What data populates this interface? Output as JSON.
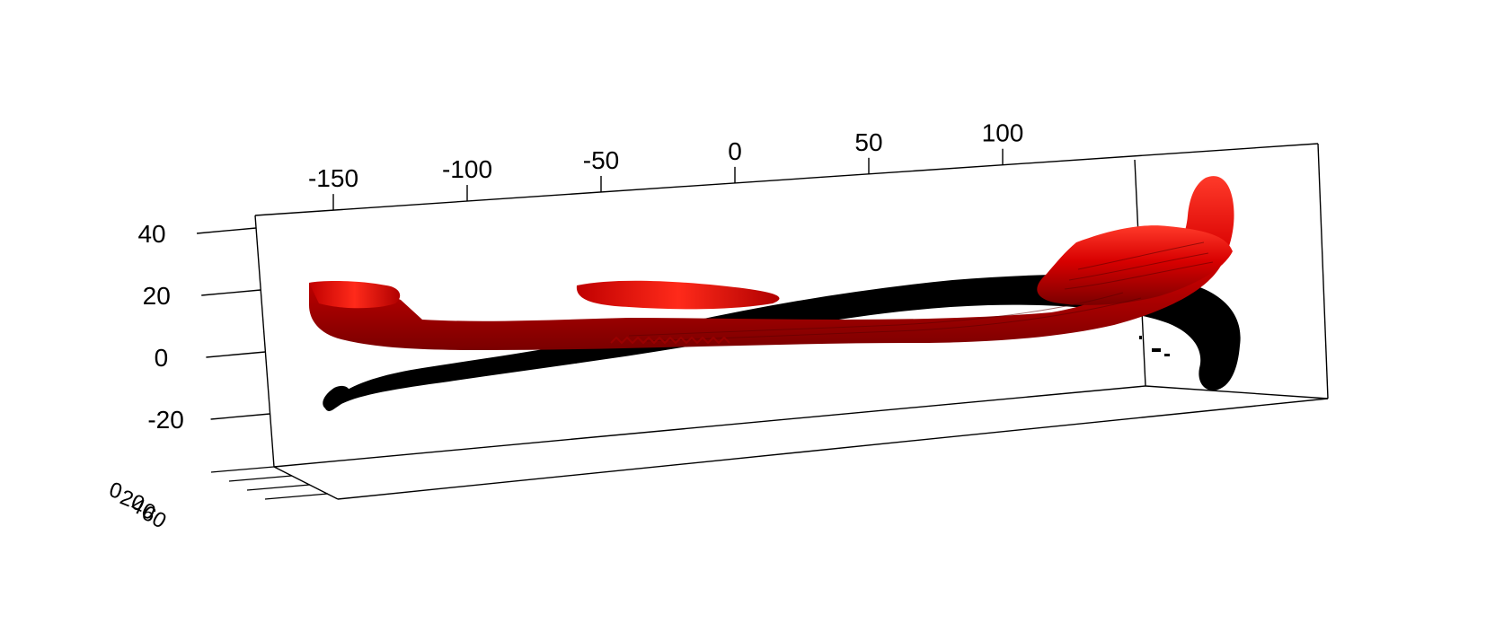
{
  "chart_data": {
    "type": "scatter",
    "projection": "3d-perspective",
    "title": "",
    "xlabel": "",
    "ylabel": "",
    "zlabel": "",
    "x_axis": {
      "ticks": [
        -150,
        -100,
        -50,
        0,
        50,
        100
      ],
      "tick_labels": [
        "-150",
        "-100",
        "-50",
        "0",
        "50",
        "100"
      ],
      "range": [
        -170,
        200
      ]
    },
    "z_axis": {
      "ticks": [
        40,
        20,
        0,
        -20
      ],
      "tick_labels": [
        "40",
        "20",
        "0",
        "-20"
      ],
      "range": [
        -30,
        45
      ]
    },
    "depth_axis": {
      "ticks": [
        0,
        20,
        40,
        60
      ],
      "tick_labels": [
        "0",
        "20",
        "40",
        "60"
      ],
      "note": "labels overlap into an illegible cluster"
    },
    "grid": false,
    "legend": "none",
    "series": [
      {
        "color": "#e00000",
        "shape": "surface mesh",
        "x": [
          -155,
          -120,
          -80,
          -40,
          0,
          40,
          80,
          120,
          150,
          165
        ],
        "z": [
          18,
          12,
          10,
          8,
          8,
          9,
          12,
          18,
          25,
          40
        ]
      },
      {
        "color": "#000000",
        "shape": "surface mesh",
        "x": [
          -155,
          -120,
          -80,
          -40,
          0,
          40,
          80,
          120,
          150,
          165
        ],
        "z": [
          -18,
          -10,
          -4,
          2,
          8,
          14,
          18,
          20,
          10,
          -12
        ]
      }
    ]
  }
}
